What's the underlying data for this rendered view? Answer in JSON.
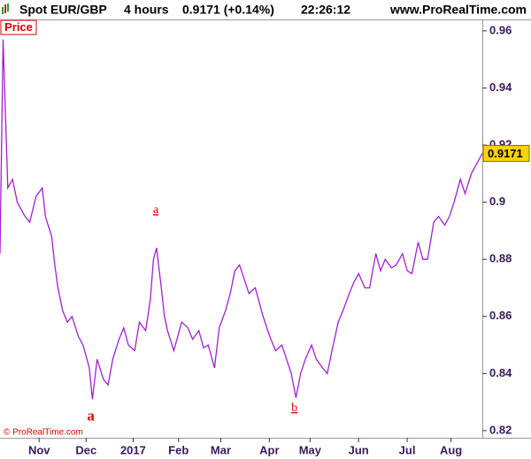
{
  "header": {
    "symbol": "Spot EUR/GBP",
    "timeframe": "4 hours",
    "quote": "0.9171 (+0.14%)",
    "time": "22:26:12",
    "site": "www.ProRealTime.com"
  },
  "chart_data": {
    "type": "line",
    "panel_label": "Price",
    "copyright": "© ProRealTime.com",
    "x": [
      0,
      2,
      5,
      8,
      11,
      16,
      19,
      23,
      27,
      29,
      33,
      35,
      37,
      40,
      43,
      46,
      50,
      53,
      57,
      59,
      62,
      66,
      69,
      72,
      76,
      79,
      82,
      86,
      89,
      93,
      96,
      98,
      100,
      103,
      105,
      107,
      111,
      113,
      116,
      120,
      123,
      127,
      130,
      133,
      137,
      140,
      144,
      147,
      150,
      153,
      156,
      159,
      163,
      165,
      168,
      171,
      173,
      176,
      180,
      183,
      186,
      189,
      192,
      195,
      199,
      202,
      206,
      209,
      212,
      216,
      219,
      223,
      226,
      229,
      233,
      236,
      240,
      243,
      246,
      250,
      253,
      257,
      260,
      263,
      267,
      270,
      273,
      277,
      280,
      284,
      287,
      290,
      294,
      297,
      301,
      304,
      308
    ],
    "series": [
      {
        "name": "Price",
        "color": "#a020d0",
        "values": [
          0.882,
          0.957,
          0.905,
          0.908,
          0.9,
          0.895,
          0.893,
          0.902,
          0.905,
          0.895,
          0.888,
          0.878,
          0.87,
          0.862,
          0.858,
          0.86,
          0.853,
          0.85,
          0.842,
          0.831,
          0.845,
          0.838,
          0.836,
          0.845,
          0.852,
          0.856,
          0.85,
          0.848,
          0.858,
          0.855,
          0.866,
          0.88,
          0.884,
          0.87,
          0.86,
          0.855,
          0.848,
          0.852,
          0.858,
          0.856,
          0.852,
          0.855,
          0.849,
          0.85,
          0.842,
          0.856,
          0.862,
          0.868,
          0.876,
          0.878,
          0.873,
          0.868,
          0.87,
          0.866,
          0.86,
          0.855,
          0.852,
          0.848,
          0.85,
          0.845,
          0.84,
          0.8315,
          0.84,
          0.845,
          0.85,
          0.845,
          0.842,
          0.84,
          0.848,
          0.858,
          0.862,
          0.868,
          0.872,
          0.875,
          0.87,
          0.87,
          0.882,
          0.876,
          0.88,
          0.877,
          0.878,
          0.882,
          0.876,
          0.875,
          0.886,
          0.88,
          0.88,
          0.893,
          0.895,
          0.892,
          0.895,
          0.9,
          0.908,
          0.903,
          0.91,
          0.913,
          0.9171
        ]
      }
    ],
    "xlim": [
      0,
      308
    ],
    "xticks": [
      {
        "value": 25,
        "label": "Nov"
      },
      {
        "value": 55,
        "label": "Dec"
      },
      {
        "value": 85,
        "label": "2017"
      },
      {
        "value": 114,
        "label": "Feb"
      },
      {
        "value": 141,
        "label": "Mar"
      },
      {
        "value": 172,
        "label": "Apr"
      },
      {
        "value": 198,
        "label": "May"
      },
      {
        "value": 229,
        "label": "Jun"
      },
      {
        "value": 260,
        "label": "Jul"
      },
      {
        "value": 288,
        "label": "Aug"
      }
    ],
    "ylim": [
      0.8175,
      0.964
    ],
    "yticks": [
      0.82,
      0.84,
      0.86,
      0.88,
      0.9,
      0.92,
      0.94,
      0.96
    ],
    "annotations": [
      {
        "text": "a",
        "x": 58,
        "y": 0.8247
      },
      {
        "text": "a",
        "x": 99.5,
        "y": 0.8971
      },
      {
        "text": "b",
        "x": 188,
        "y": 0.8278
      }
    ]
  }
}
